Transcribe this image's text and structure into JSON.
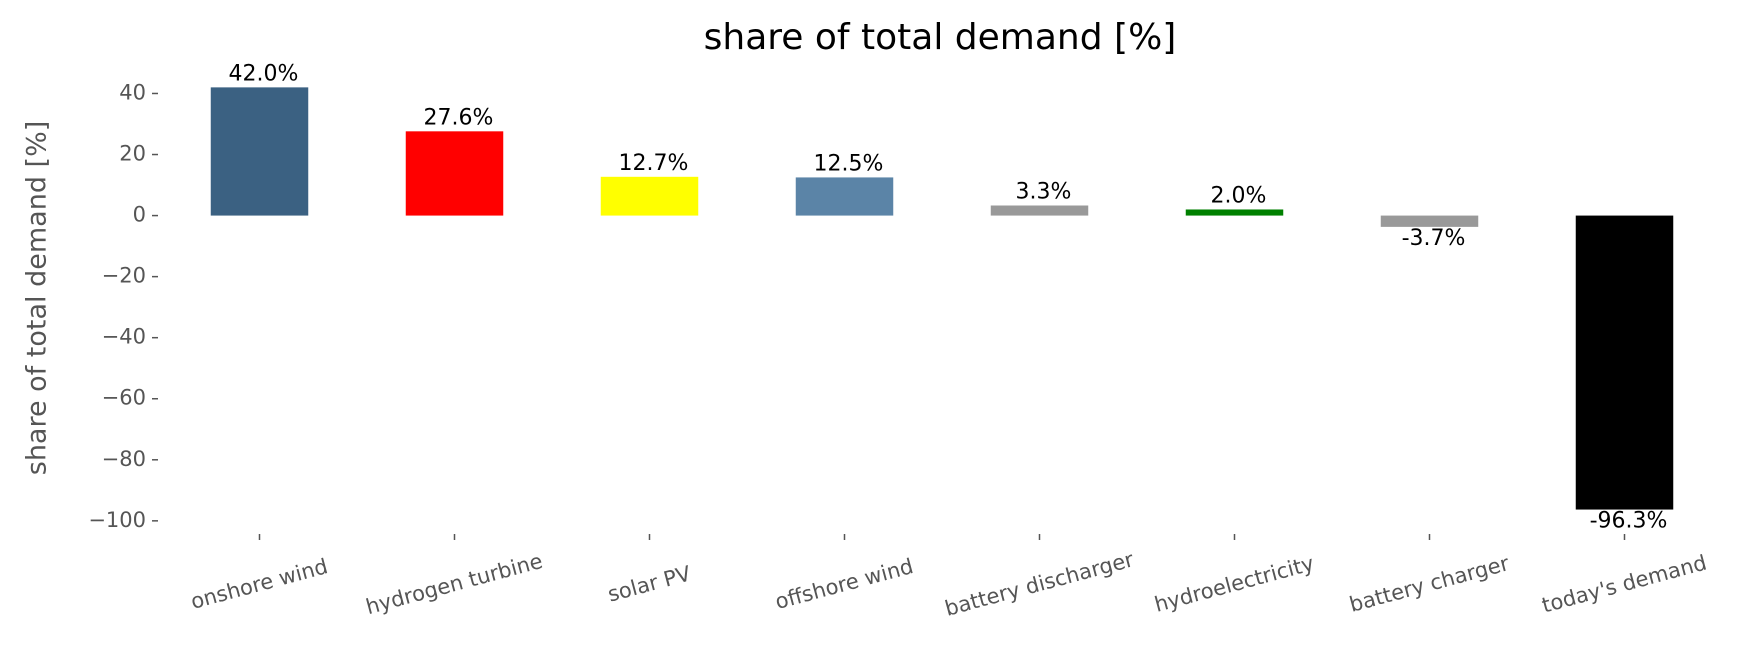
{
  "chart_data": {
    "type": "bar",
    "title": "share of total demand [%]",
    "y_label": "share of total demand [%]",
    "categories": [
      "onshore wind",
      "hydrogen turbine",
      "solar PV",
      "offshore wind",
      "battery discharger",
      "hydroelectricity",
      "battery charger",
      "today's demand"
    ],
    "values": [
      42.0,
      27.6,
      12.7,
      12.5,
      3.3,
      2.0,
      -3.7,
      -96.3
    ],
    "value_labels": [
      "42.0%",
      "27.6%",
      "12.7%",
      "12.5%",
      "3.3%",
      "2.0%",
      "-3.7%",
      "-96.3%"
    ],
    "colors": [
      "#3b6182",
      "#ff0000",
      "#ffff00",
      "#5b84a7",
      "#999999",
      "#008000",
      "#999999",
      "#000000"
    ],
    "ylim": [
      -103,
      49
    ],
    "yticks": [
      {
        "value": -100,
        "label": "−100"
      },
      {
        "value": -80,
        "label": "−80"
      },
      {
        "value": -60,
        "label": "−60"
      },
      {
        "value": -40,
        "label": "−40"
      },
      {
        "value": -20,
        "label": "−20"
      },
      0,
      20,
      40
    ],
    "grid": false
  }
}
